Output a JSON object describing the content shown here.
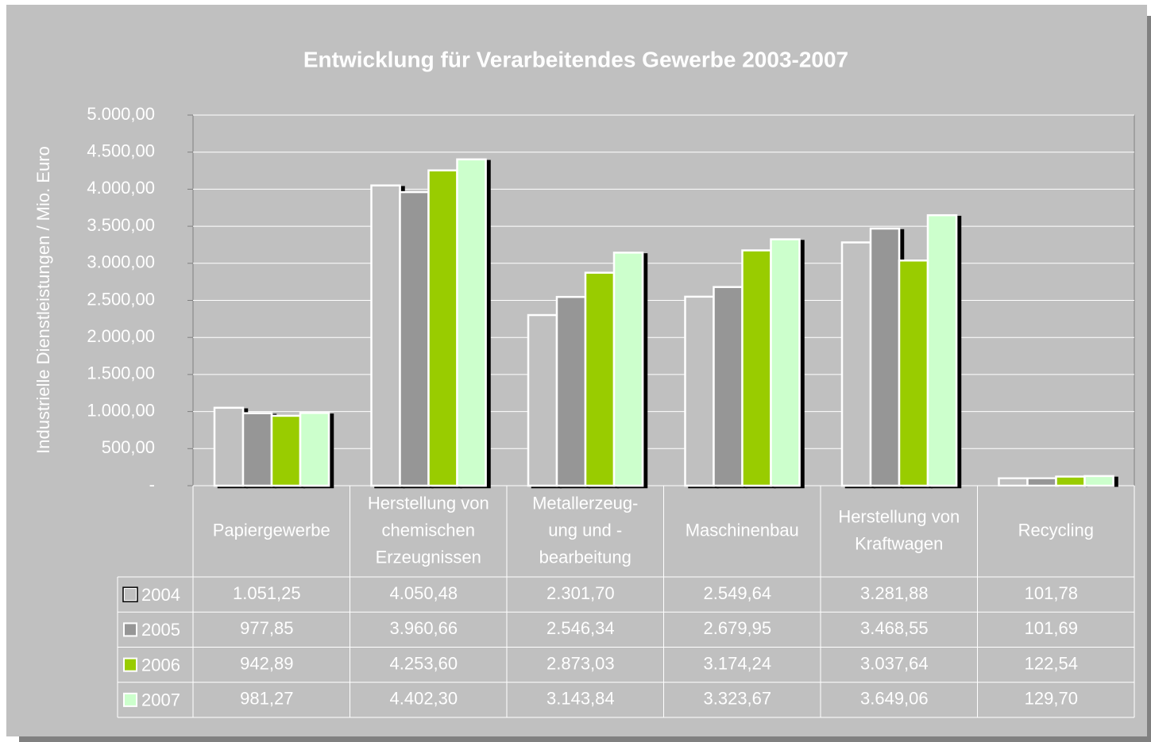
{
  "chart_data": {
    "type": "bar",
    "title": "Entwicklung für Verarbeitendes Gewerbe 2003-2007",
    "y_label": "Industrielle Dienstleistungen / Mio. Euro",
    "categories": [
      [
        "Papiergewerbe"
      ],
      [
        "Herstellung von",
        "chemischen",
        "Erzeugnissen"
      ],
      [
        "Metallerzeug-",
        "ung und -",
        "bearbeitung"
      ],
      [
        "Maschinenbau"
      ],
      [
        "Herstellung von",
        "Kraftwagen"
      ],
      [
        "Recycling"
      ]
    ],
    "series": [
      {
        "name": "2004",
        "color": "#c0c0c0",
        "values": [
          1051.25,
          4050.48,
          2301.7,
          2549.64,
          3281.88,
          101.78
        ],
        "value_labels": [
          "1.051,25",
          "4.050,48",
          "2.301,70",
          "2.549,64",
          "3.281,88",
          "101,78"
        ]
      },
      {
        "name": "2005",
        "color": "#969696",
        "values": [
          977.85,
          3960.66,
          2546.34,
          2679.95,
          3468.55,
          101.69
        ],
        "value_labels": [
          "977,85",
          "3.960,66",
          "2.546,34",
          "2.679,95",
          "3.468,55",
          "101,69"
        ]
      },
      {
        "name": "2006",
        "color": "#99cc00",
        "values": [
          942.89,
          4253.6,
          2873.03,
          3174.24,
          3037.64,
          122.54
        ],
        "value_labels": [
          "942,89",
          "4.253,60",
          "2.873,03",
          "3.174,24",
          "3.037,64",
          "122,54"
        ]
      },
      {
        "name": "2007",
        "color": "#ccffcc",
        "values": [
          981.27,
          4402.3,
          3143.84,
          3323.67,
          3649.06,
          129.7
        ],
        "value_labels": [
          "981,27",
          "4.402,30",
          "3.143,84",
          "3.323,67",
          "3.649,06",
          "129,70"
        ]
      }
    ],
    "ylim": [
      0,
      5000
    ],
    "yticks": [
      {
        "value": 0,
        "label": "-"
      },
      {
        "value": 500,
        "label": "500,00"
      },
      {
        "value": 1000,
        "label": "1.000,00"
      },
      {
        "value": 1500,
        "label": "1.500,00"
      },
      {
        "value": 2000,
        "label": "2.000,00"
      },
      {
        "value": 2500,
        "label": "2.500,00"
      },
      {
        "value": 3000,
        "label": "3.000,00"
      },
      {
        "value": 3500,
        "label": "3.500,00"
      },
      {
        "value": 4000,
        "label": "4.000,00"
      },
      {
        "value": 4500,
        "label": "4.500,00"
      },
      {
        "value": 5000,
        "label": "5.000,00"
      }
    ],
    "grid": true
  }
}
